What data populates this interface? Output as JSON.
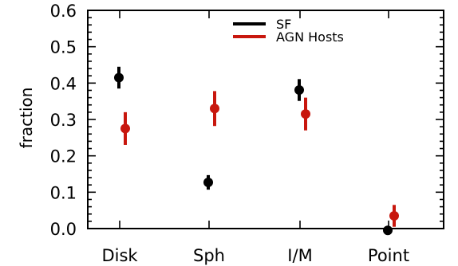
{
  "chart_data": {
    "type": "scatter",
    "categories": [
      "Disk",
      "Sph",
      "I/M",
      "Point"
    ],
    "ylabel": "fraction",
    "xlabel": "",
    "ylim": [
      0.0,
      0.6
    ],
    "yticks": [
      "0.0",
      "0.1",
      "0.2",
      "0.3",
      "0.4",
      "0.5",
      "0.6"
    ],
    "legend": {
      "placement": "top-center"
    },
    "series": [
      {
        "name": "SF",
        "color": "#000000",
        "values": [
          0.415,
          0.127,
          0.381,
          -0.005
        ],
        "errors": [
          0.03,
          0.02,
          0.03,
          0.0
        ]
      },
      {
        "name": "AGN Hosts",
        "color": "#c8170e",
        "values": [
          0.275,
          0.33,
          0.315,
          0.035
        ],
        "errors": [
          0.045,
          0.048,
          0.045,
          0.03
        ]
      }
    ]
  }
}
